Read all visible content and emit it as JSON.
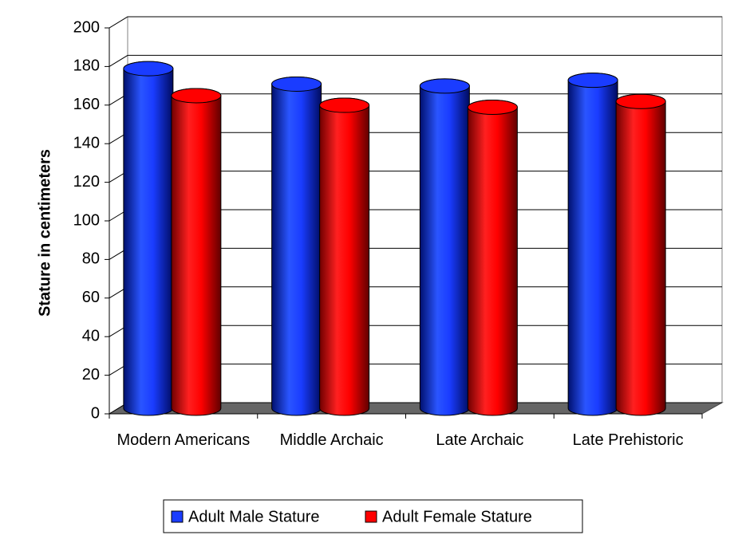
{
  "chart_data": {
    "type": "bar",
    "y_label": "Stature in centimeters",
    "categories": [
      "Modern Americans",
      "Middle Archaic",
      "Late Archaic",
      "Late Prehistoric"
    ],
    "series": [
      {
        "name": "Adult Male Stature",
        "color": "#1a3cff",
        "values": [
          176,
          168,
          167,
          170
        ]
      },
      {
        "name": "Adult Female Stature",
        "color": "#ff0000",
        "values": [
          162,
          157,
          156,
          159
        ]
      }
    ],
    "ylim": [
      0,
      200
    ],
    "yticks": [
      0,
      20,
      40,
      60,
      80,
      100,
      120,
      140,
      160,
      180,
      200
    ],
    "grid": true,
    "legend": "bottom"
  }
}
